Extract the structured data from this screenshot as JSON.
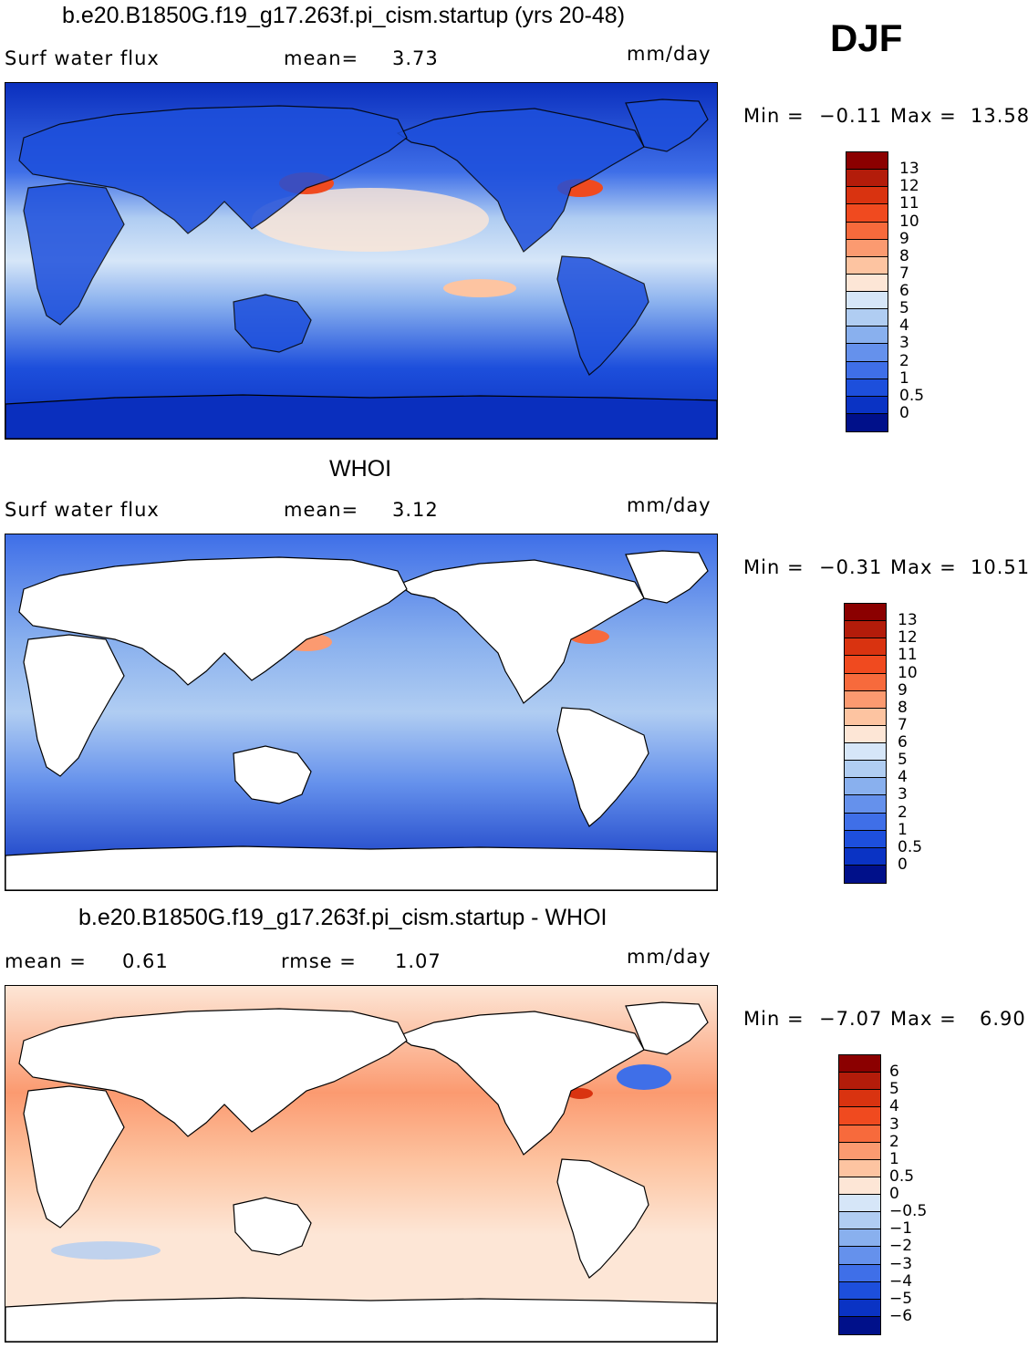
{
  "season": "DJF",
  "panels": [
    {
      "title": "b.e20.B1850G.f19_g17.263f.pi_cism.startup (yrs 20-48)",
      "left_label": "Surf water flux",
      "stat1_label": "mean=",
      "stat1_value": "3.73",
      "stat2_label": "",
      "stat2_value": "",
      "units": "mm/day",
      "minmax": {
        "min_label": "Min =",
        "min": "−0.11",
        "max_label": "Max =",
        "max": "13.58"
      },
      "colorbar": {
        "labels": [
          "13",
          "12",
          "11",
          "10",
          "9",
          "8",
          "7",
          "6",
          "5",
          "4",
          "3",
          "2",
          "1",
          "0.5",
          "0"
        ],
        "colors": [
          "#8b0000",
          "#b31c0a",
          "#d93310",
          "#f04a1f",
          "#f76a3c",
          "#fb9a70",
          "#fdc4a1",
          "#fde6d6",
          "#d6e6f8",
          "#b0cdf2",
          "#89b0ee",
          "#6591ec",
          "#3f6fe8",
          "#1d4fdc",
          "#0a33c4",
          "#00108a"
        ]
      },
      "map_style": "full"
    },
    {
      "title": "WHOI",
      "left_label": "Surf water flux",
      "stat1_label": "mean=",
      "stat1_value": "3.12",
      "stat2_label": "",
      "stat2_value": "",
      "units": "mm/day",
      "minmax": {
        "min_label": "Min =",
        "min": "−0.31",
        "max_label": "Max =",
        "max": "10.51"
      },
      "colorbar": {
        "labels": [
          "13",
          "12",
          "11",
          "10",
          "9",
          "8",
          "7",
          "6",
          "5",
          "4",
          "3",
          "2",
          "1",
          "0.5",
          "0"
        ],
        "colors": [
          "#8b0000",
          "#b31c0a",
          "#d93310",
          "#f04a1f",
          "#f76a3c",
          "#fb9a70",
          "#fdc4a1",
          "#fde6d6",
          "#d6e6f8",
          "#b0cdf2",
          "#89b0ee",
          "#6591ec",
          "#3f6fe8",
          "#1d4fdc",
          "#0a33c4",
          "#00108a"
        ]
      },
      "map_style": "ocean"
    },
    {
      "title": "b.e20.B1850G.f19_g17.263f.pi_cism.startup - WHOI",
      "left_label": "mean =",
      "stat1_label": "",
      "stat1_value": "0.61",
      "stat2_label": "rmse =",
      "stat2_value": "1.07",
      "units": "mm/day",
      "minmax": {
        "min_label": "Min =",
        "min": "−7.07",
        "max_label": "Max =",
        "max": "6.90"
      },
      "colorbar": {
        "labels": [
          "6",
          "5",
          "4",
          "3",
          "2",
          "1",
          "0.5",
          "0",
          "−0.5",
          "−1",
          "−2",
          "−3",
          "−4",
          "−5",
          "−6"
        ],
        "colors": [
          "#8b0000",
          "#b31c0a",
          "#d93310",
          "#f04a1f",
          "#f76a3c",
          "#fb9a70",
          "#fdc4a1",
          "#fde6d6",
          "#d6e6f8",
          "#b0cdf2",
          "#89b0ee",
          "#6591ec",
          "#3f6fe8",
          "#1d4fdc",
          "#0a33c4",
          "#00108a"
        ]
      },
      "map_style": "diff"
    }
  ]
}
